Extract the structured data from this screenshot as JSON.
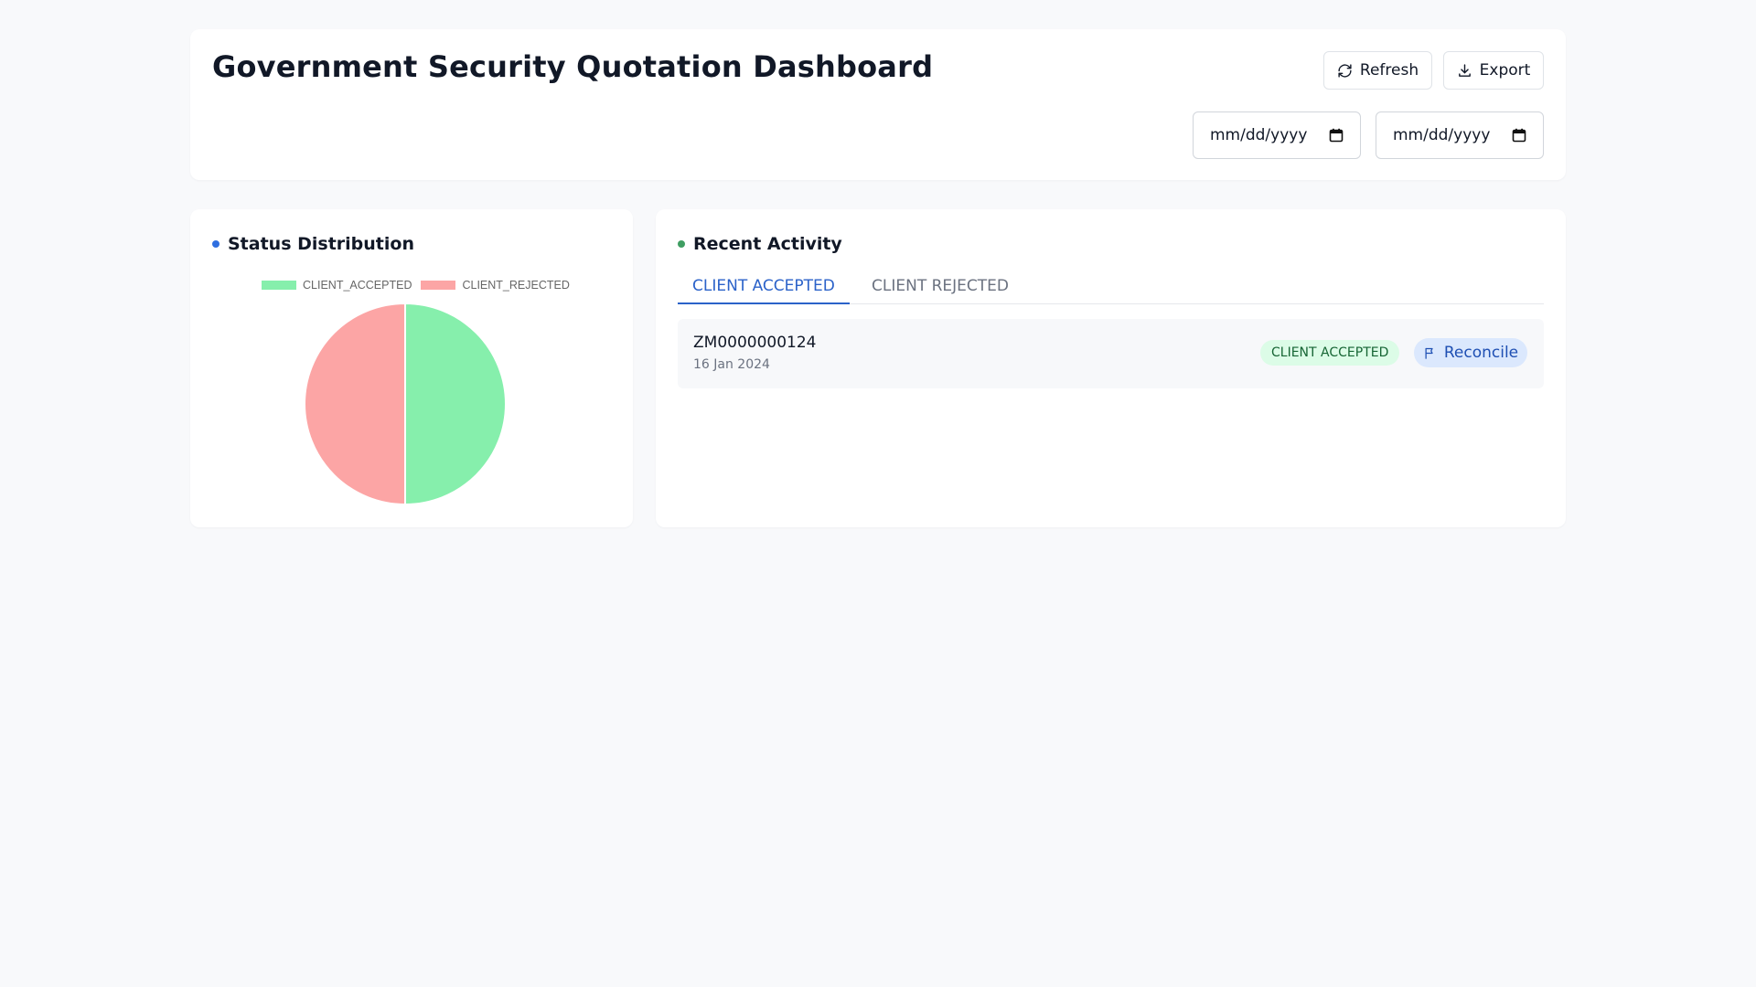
{
  "header": {
    "title": "Government Security Quotation Dashboard",
    "refresh_label": "Refresh",
    "export_label": "Export",
    "date_start_placeholder": "mm/dd/yyyy",
    "date_end_placeholder": "mm/dd/yyyy"
  },
  "status_card": {
    "title": "Status Distribution",
    "dot_color": "#2f6fe0"
  },
  "activity_card": {
    "title": "Recent Activity",
    "dot_color": "#3f9e62",
    "tabs": [
      {
        "label": "CLIENT ACCEPTED",
        "active": true
      },
      {
        "label": "CLIENT REJECTED",
        "active": false
      }
    ],
    "rows": [
      {
        "id": "ZM0000000124",
        "date": "16 Jan 2024",
        "status": "CLIENT ACCEPTED",
        "action_label": "Reconcile"
      }
    ]
  },
  "chart_data": {
    "type": "pie",
    "categories": [
      "CLIENT_ACCEPTED",
      "CLIENT_REJECTED"
    ],
    "values": [
      1,
      1
    ],
    "colors": [
      "#86efac",
      "#fca5a5"
    ],
    "legend_position": "top"
  },
  "icons": {
    "refresh": "refresh-icon",
    "export": "download-icon",
    "calendar": "calendar-icon",
    "reconcile": "flag-icon"
  }
}
